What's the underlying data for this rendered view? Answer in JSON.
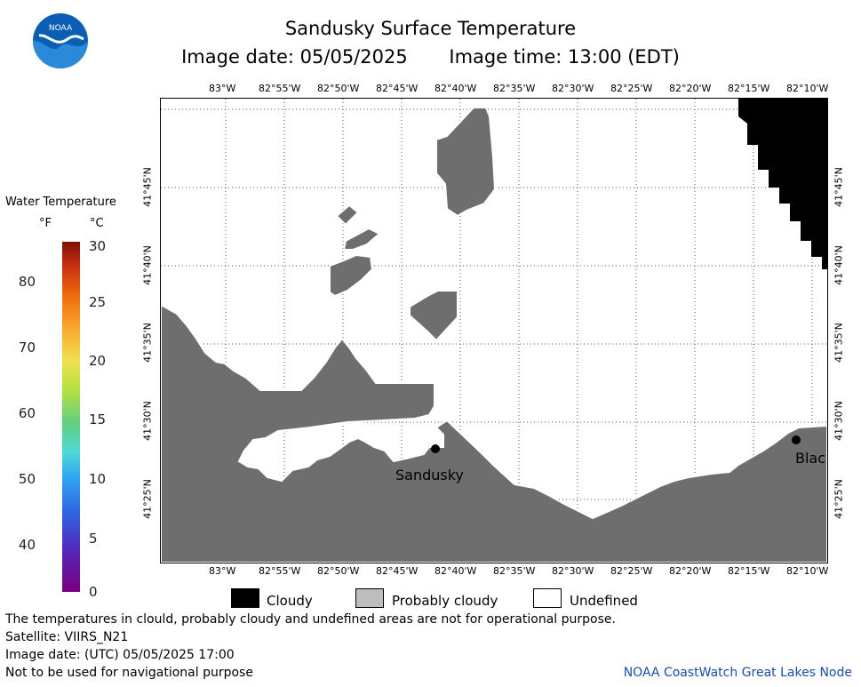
{
  "header": {
    "title": "Sandusky Surface Temperature",
    "image_date": "Image date: 05/05/2025",
    "image_time": "Image time: 13:00 (EDT)",
    "logo_text": "NOAA"
  },
  "scale": {
    "title": "Water Temperature",
    "unit_f": "°F",
    "unit_c": "°C",
    "f_ticks": [
      "80",
      "70",
      "60",
      "50",
      "40"
    ],
    "c_ticks": [
      "30",
      "25",
      "20",
      "15",
      "10",
      "5",
      "0"
    ]
  },
  "axes": {
    "lon_labels": [
      "83°W",
      "82°55'W",
      "82°50'W",
      "82°45'W",
      "82°40'W",
      "82°35'W",
      "82°30'W",
      "82°25'W",
      "82°20'W",
      "82°15'W",
      "82°10'W"
    ],
    "lat_labels": [
      "41°45'N",
      "41°40'N",
      "41°35'N",
      "41°30'N",
      "41°25'N"
    ]
  },
  "places": {
    "sandusky": "Sandusky",
    "blac": "Blac"
  },
  "legend": {
    "cloudy": "Cloudy",
    "probably_cloudy": "Probably cloudy",
    "undefined": "Undefined"
  },
  "notes": {
    "disclaimer": "The temperatures in clould, probably cloudy and undefined areas are not for operational purpose.",
    "satellite": "Satellite: VIIRS_N21",
    "utc_date": "Image date: (UTC) 05/05/2025  17:00",
    "navigation": "Not to be used for navigational purpose",
    "credit": "NOAA CoastWatch Great Lakes Node"
  },
  "colors": {
    "land": "#6e6e6e",
    "cloudy": "#000000",
    "probably_cloudy": "#bdbdbd",
    "undefined": "#ffffff",
    "credit": "#1a4ca8"
  }
}
